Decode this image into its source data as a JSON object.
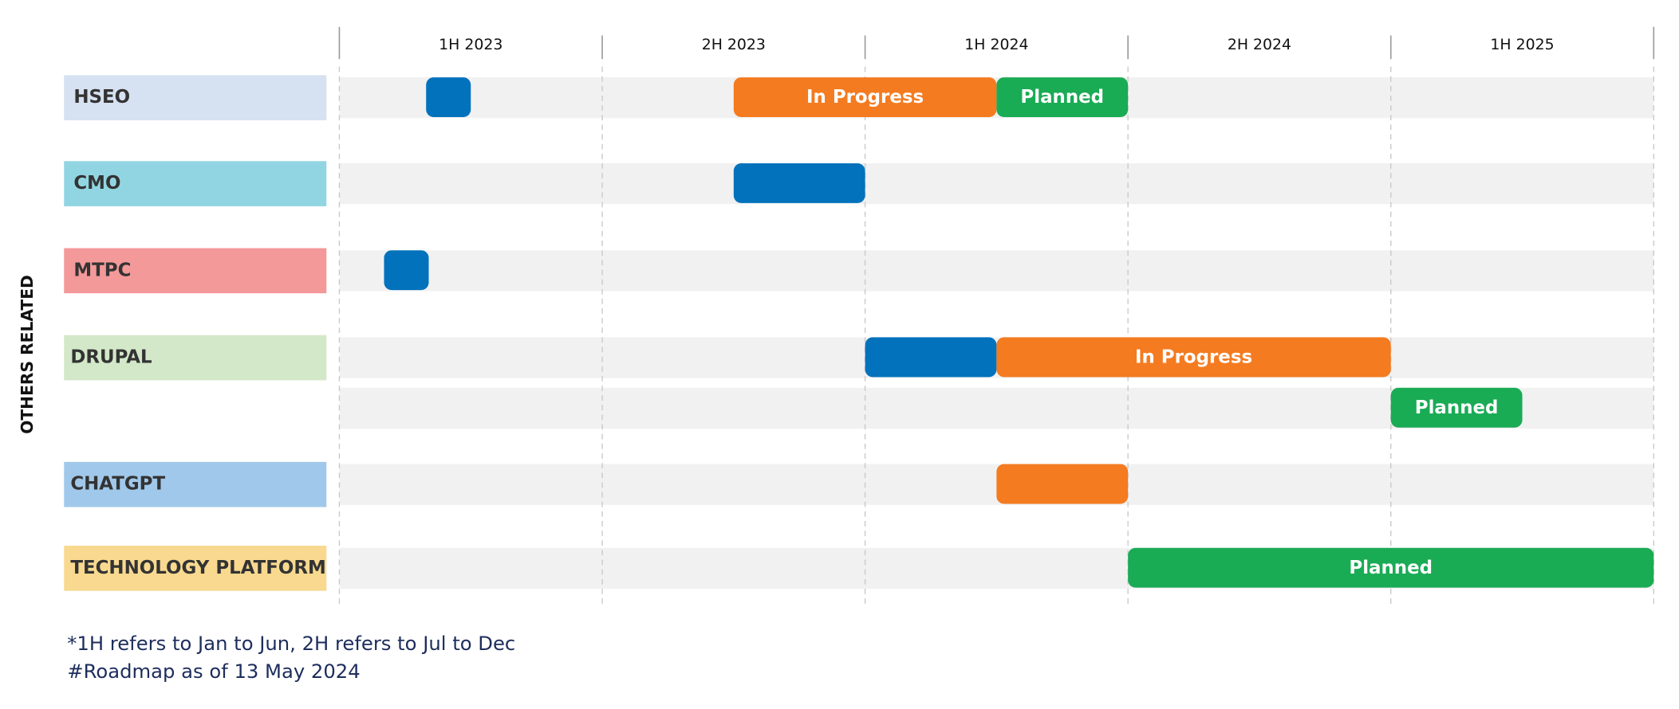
{
  "header": {
    "periods": [
      "1H 2023",
      "2H 2023",
      "1H 2024",
      "2H 2024",
      "1H 2025"
    ]
  },
  "side_label": "OTHERS RELATED",
  "rows": [
    {
      "label": "HSEO",
      "color": "#d6e1f1",
      "lanes": [
        [
          {
            "start": 0.33,
            "end": 0.5,
            "color": "#0272bc"
          },
          {
            "start": 1.5,
            "end": 2.5,
            "color": "#f47b20",
            "label": "In Progress"
          },
          {
            "start": 2.5,
            "end": 3,
            "color": "#1aab55",
            "label": "Planned"
          }
        ]
      ]
    },
    {
      "label": "CMO",
      "color": "#92d5e2",
      "lanes": [
        [
          {
            "start": 1.5,
            "end": 2,
            "color": "#0272bc"
          }
        ]
      ]
    },
    {
      "label": "MTPC",
      "color": "#f4999a",
      "lanes": [
        [
          {
            "start": 0.17,
            "end": 0.34,
            "color": "#0272bc"
          }
        ]
      ]
    },
    {
      "label": "DRUPAL",
      "color": "#d3e8c8",
      "lanes": [
        [
          {
            "start": 2,
            "end": 2.5,
            "color": "#0272bc"
          },
          {
            "start": 2.5,
            "end": 4,
            "color": "#f47b20",
            "label": "In Progress"
          }
        ],
        [
          {
            "start": 4,
            "end": 4.5,
            "color": "#1aab55",
            "label": "Planned"
          }
        ]
      ]
    },
    {
      "label": "CHATGPT",
      "color": "#a0c8ea",
      "lanes": [
        [
          {
            "start": 2.5,
            "end": 3,
            "color": "#f47b20"
          }
        ]
      ]
    },
    {
      "label": "TECHNOLOGY PLATFORM",
      "color": "#f8d98f",
      "lanes": [
        [
          {
            "start": 3,
            "end": 5,
            "color": "#1aab55",
            "label": "Planned"
          }
        ]
      ]
    }
  ],
  "footnotes": [
    "*1H refers to Jan to Jun, 2H refers to Jul to Dec",
    "#Roadmap as of 13 May 2024"
  ]
}
